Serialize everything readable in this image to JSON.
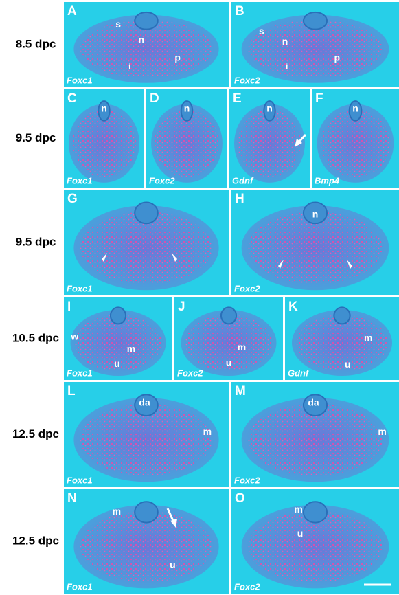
{
  "rows": [
    {
      "stage": "8.5 dpc",
      "panels": [
        {
          "letter": "A",
          "gene": "Foxc1",
          "marks": [
            "s",
            "n",
            "p",
            "i"
          ]
        },
        {
          "letter": "B",
          "gene": "Foxc2",
          "marks": [
            "s",
            "n",
            "i",
            "p"
          ]
        }
      ]
    },
    {
      "stage": "9.5 dpc",
      "panels": [
        {
          "letter": "C",
          "gene": "Foxc1",
          "marks": [
            "n"
          ]
        },
        {
          "letter": "D",
          "gene": "Foxc2",
          "marks": [
            "n"
          ]
        },
        {
          "letter": "E",
          "gene": "Gdnf",
          "marks": [
            "n"
          ]
        },
        {
          "letter": "F",
          "gene": "Bmp4",
          "marks": [
            "n"
          ]
        }
      ]
    },
    {
      "stage": "9.5 dpc",
      "panels": [
        {
          "letter": "G",
          "gene": "Foxc1",
          "marks": []
        },
        {
          "letter": "H",
          "gene": "Foxc2",
          "marks": [
            "n"
          ]
        }
      ]
    },
    {
      "stage": "10.5 dpc",
      "panels": [
        {
          "letter": "I",
          "gene": "Foxc1",
          "marks": [
            "w",
            "m",
            "u"
          ]
        },
        {
          "letter": "J",
          "gene": "Foxc2",
          "marks": [
            "m",
            "u"
          ]
        },
        {
          "letter": "K",
          "gene": "Gdnf",
          "marks": [
            "m",
            "u"
          ]
        }
      ]
    },
    {
      "stage": "12.5 dpc",
      "panels": [
        {
          "letter": "L",
          "gene": "Foxc1",
          "marks": [
            "da",
            "m"
          ]
        },
        {
          "letter": "M",
          "gene": "Foxc2",
          "marks": [
            "da",
            "m"
          ]
        }
      ]
    },
    {
      "stage": "12.5 dpc",
      "panels": [
        {
          "letter": "N",
          "gene": "Foxc1",
          "marks": [
            "m",
            "u"
          ]
        },
        {
          "letter": "O",
          "gene": "Foxc2",
          "marks": [
            "m",
            "u"
          ]
        }
      ]
    }
  ]
}
